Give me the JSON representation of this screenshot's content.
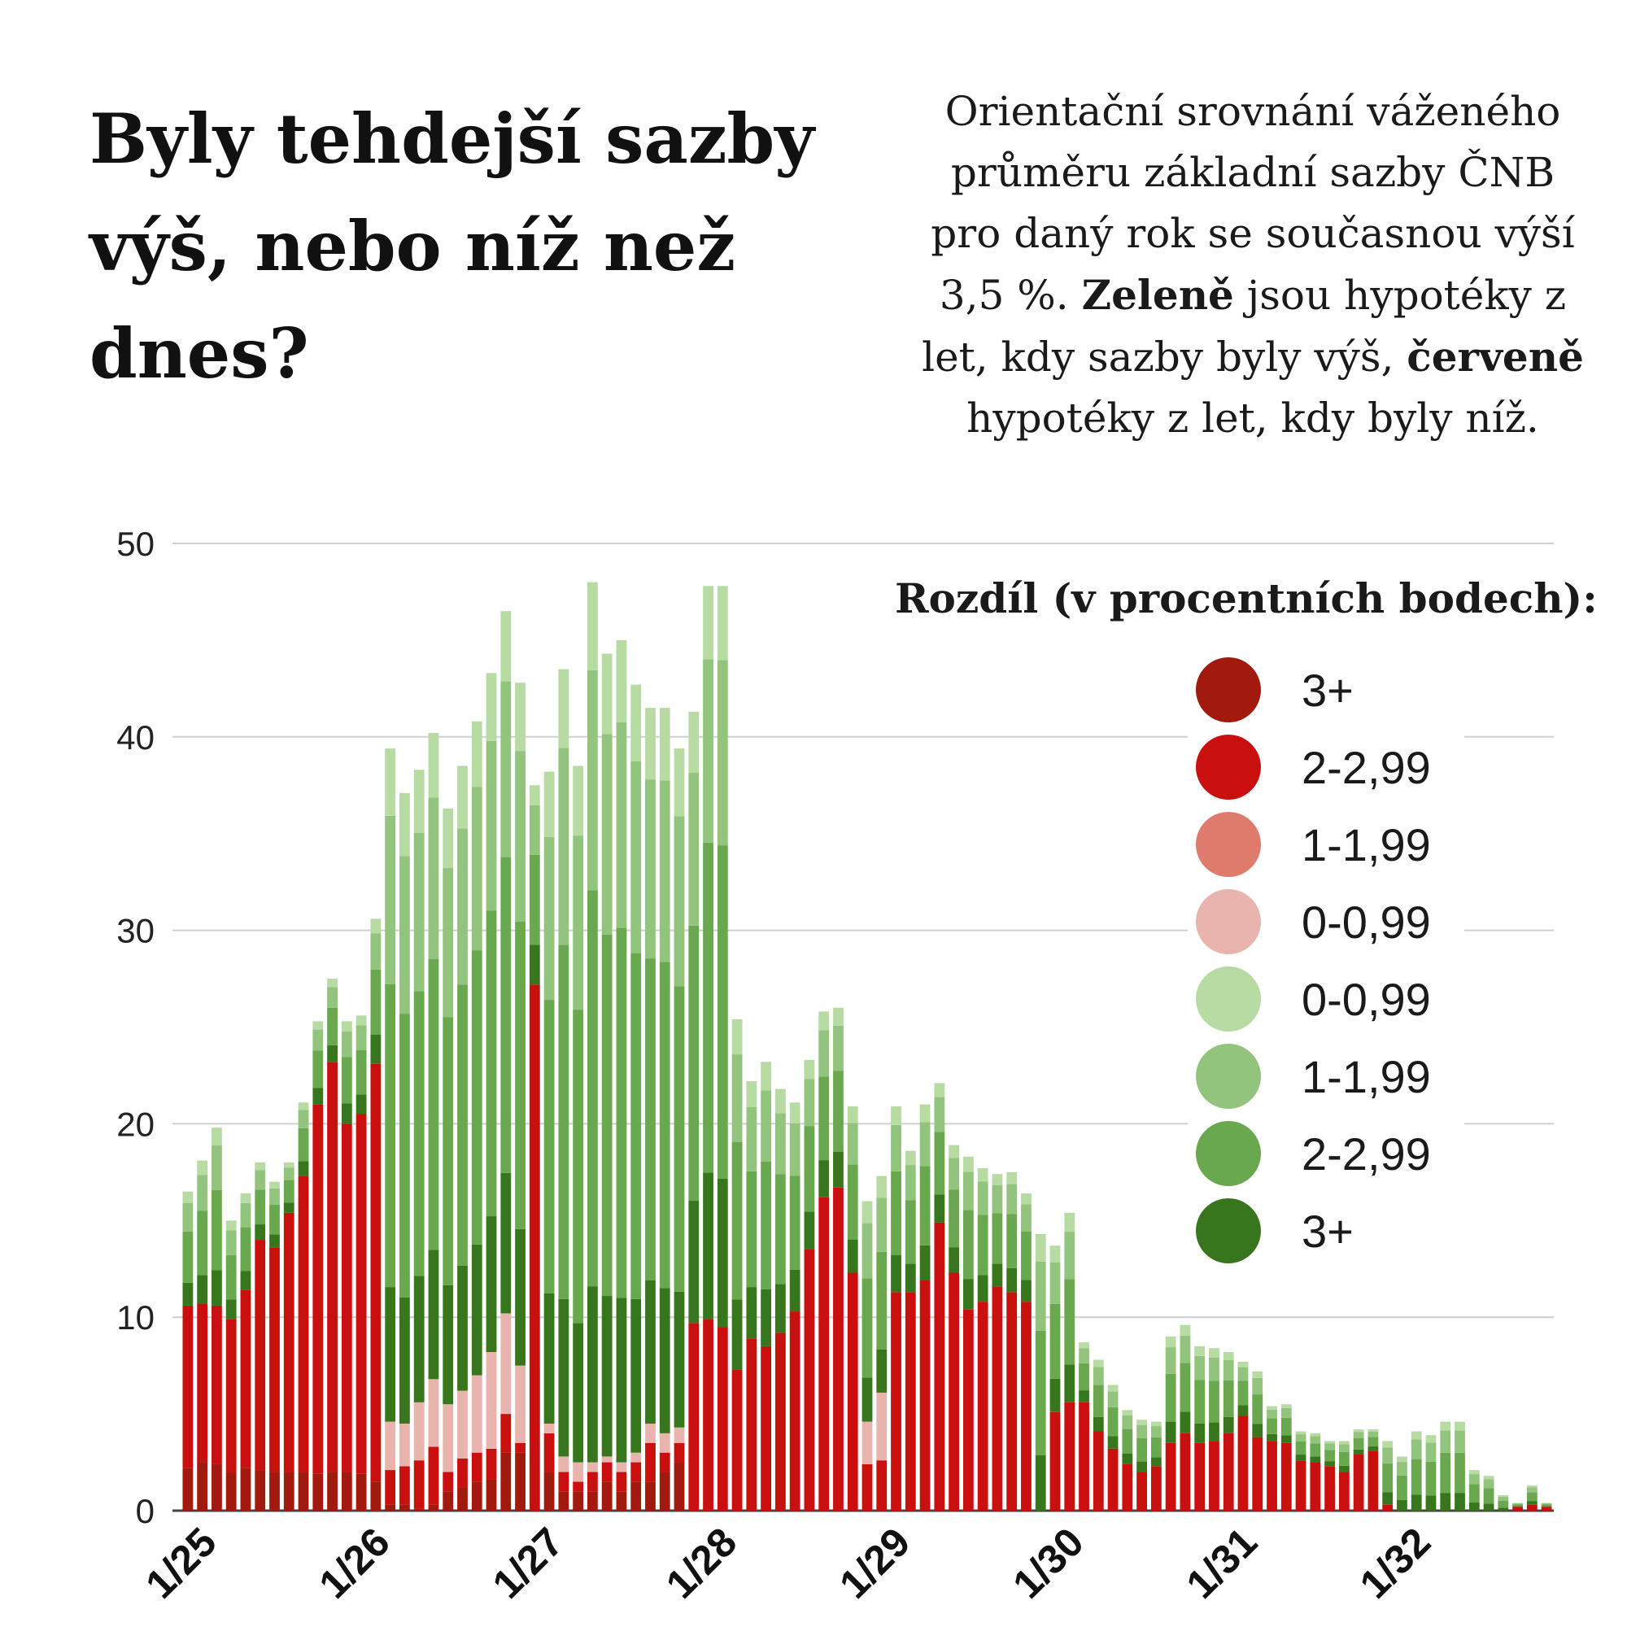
{
  "header": {
    "title": "Byly tehdejší sazby výš, nebo níž než dnes?",
    "subtitle_parts": [
      {
        "text": "Orientační srovnání váženého průměru základní sazby ČNB pro daný rok se současnou výší 3,5 %. ",
        "bold": false
      },
      {
        "text": "Zeleně",
        "bold": true
      },
      {
        "text": " jsou hypotéky z let, kdy sazby byly výš, ",
        "bold": false
      },
      {
        "text": "červeně",
        "bold": true
      },
      {
        "text": " hypotéky z let, kdy byly níž.",
        "bold": false
      }
    ]
  },
  "chart_data": {
    "type": "bar",
    "stacked": true,
    "ylim": [
      0,
      50
    ],
    "yticks": [
      0,
      10,
      20,
      30,
      40,
      50
    ],
    "x_tick_labels": [
      "1/25",
      "1/26",
      "1/27",
      "1/28",
      "1/29",
      "1/30",
      "1/31",
      "1/32"
    ],
    "x_tick_positions": [
      0,
      12,
      24,
      36,
      48,
      60,
      72,
      84
    ],
    "legend_title": "Rozdíl (v procentních bodech):",
    "legend_position": "right",
    "series": [
      {
        "name": "3+",
        "group": "lower",
        "color": "#a11a0d"
      },
      {
        "name": "2-2,99",
        "group": "lower",
        "color": "#c9100f"
      },
      {
        "name": "1-1,99",
        "group": "lower",
        "color": "#df7b6c"
      },
      {
        "name": "0-0,99",
        "group": "lower",
        "color": "#e9b4ae"
      },
      {
        "name": "0-0,99",
        "group": "higher",
        "color": "#b8dba4"
      },
      {
        "name": "1-1,99",
        "group": "higher",
        "color": "#93c47d"
      },
      {
        "name": "2-2,99",
        "group": "higher",
        "color": "#6aa84f"
      },
      {
        "name": "3+",
        "group": "higher",
        "color": "#38761d"
      }
    ],
    "bar_totals": [
      16.5,
      18.1,
      19.8,
      15.0,
      16.4,
      18.0,
      17.0,
      18.0,
      21.1,
      25.3,
      27.5,
      25.3,
      25.6,
      30.6,
      39.4,
      37.1,
      38.3,
      40.2,
      36.3,
      38.5,
      40.8,
      43.3,
      46.5,
      42.8,
      37.5,
      38.2,
      43.5,
      38.5,
      48.0,
      44.3,
      45.0,
      42.7,
      41.5,
      41.5,
      39.4,
      41.3,
      47.8,
      47.8,
      25.4,
      22.2,
      23.2,
      21.8,
      21.1,
      23.3,
      25.8,
      26.0,
      20.9,
      16.0,
      17.3,
      20.9,
      18.6,
      21.0,
      22.1,
      18.9,
      18.3,
      17.7,
      17.4,
      17.5,
      16.4,
      14.3,
      13.7,
      15.4,
      8.7,
      7.8,
      6.5,
      5.2,
      4.7,
      4.6,
      9.0,
      9.6,
      8.5,
      8.4,
      8.2,
      7.7,
      7.2,
      5.4,
      5.5,
      4.1,
      4.0,
      3.6,
      3.6,
      4.2,
      4.2,
      3.6,
      2.8,
      4.1,
      3.9,
      4.6,
      4.6,
      2.1,
      1.8,
      0.8,
      0.4,
      1.3,
      0.4
    ],
    "bar_lower": [
      [
        2.2,
        8.4,
        0,
        0
      ],
      [
        2.5,
        8.2,
        0,
        0
      ],
      [
        2.4,
        8.2,
        0,
        0
      ],
      [
        2.0,
        7.9,
        0,
        0
      ],
      [
        2.2,
        9.2,
        0,
        0
      ],
      [
        2.1,
        11.9,
        0,
        0
      ],
      [
        2.0,
        11.6,
        0,
        0
      ],
      [
        2.0,
        13.4,
        0,
        0
      ],
      [
        2.0,
        15.3,
        0,
        0
      ],
      [
        1.9,
        19.1,
        0,
        0
      ],
      [
        2.0,
        21.2,
        0,
        0
      ],
      [
        2.0,
        18.0,
        0,
        0
      ],
      [
        1.9,
        18.6,
        0,
        0
      ],
      [
        1.5,
        21.6,
        0,
        0
      ],
      [
        0.3,
        1.8,
        0,
        2.5
      ],
      [
        0.3,
        2.0,
        0,
        2.2
      ],
      [
        0.1,
        2.5,
        0,
        3.0
      ],
      [
        0.3,
        3.0,
        0,
        3.5
      ],
      [
        1.0,
        1.0,
        0,
        3.5
      ],
      [
        1.2,
        1.5,
        0,
        3.5
      ],
      [
        1.5,
        1.5,
        0,
        4.0
      ],
      [
        1.6,
        1.6,
        0,
        5.0
      ],
      [
        3.0,
        2.0,
        0,
        5.2
      ],
      [
        3.0,
        0.5,
        0,
        4.0
      ],
      [
        0,
        27.2,
        0,
        0
      ],
      [
        2.0,
        2.0,
        0,
        0.5
      ],
      [
        1.0,
        1.0,
        0,
        0.8
      ],
      [
        1.0,
        0.5,
        0,
        1.0
      ],
      [
        1.0,
        1.0,
        0,
        0.5
      ],
      [
        1.5,
        1.0,
        0,
        0.3
      ],
      [
        1.0,
        1.0,
        0,
        0.5
      ],
      [
        1.5,
        1.0,
        0,
        0.5
      ],
      [
        1.5,
        2.0,
        0,
        1.0
      ],
      [
        2.0,
        1.0,
        0,
        1.0
      ],
      [
        2.5,
        1.0,
        0,
        0.8
      ],
      [
        0,
        9.7,
        0,
        0
      ],
      [
        0,
        9.9,
        0,
        0
      ],
      [
        0,
        9.5,
        0,
        0
      ],
      [
        0,
        7.3,
        0,
        0
      ],
      [
        0,
        8.9,
        0,
        0
      ],
      [
        0,
        8.5,
        0,
        0
      ],
      [
        0,
        9.2,
        0,
        0
      ],
      [
        0,
        10.3,
        0,
        0
      ],
      [
        0,
        13.5,
        0,
        0
      ],
      [
        0,
        16.2,
        0,
        0
      ],
      [
        0,
        16.7,
        0,
        0
      ],
      [
        0,
        12.3,
        0,
        0
      ],
      [
        0,
        2.4,
        0,
        2.2
      ],
      [
        0,
        2.6,
        0,
        3.5
      ],
      [
        0,
        11.3,
        0,
        0
      ],
      [
        0,
        11.3,
        0,
        0
      ],
      [
        0,
        11.9,
        0,
        0
      ],
      [
        0,
        14.9,
        0,
        0
      ],
      [
        0,
        12.3,
        0,
        0
      ],
      [
        0,
        10.4,
        0,
        0
      ],
      [
        0,
        10.8,
        0,
        0
      ],
      [
        0,
        11.6,
        0,
        0
      ],
      [
        0,
        11.3,
        0,
        0
      ],
      [
        0,
        10.8,
        0,
        0
      ],
      [
        0,
        0,
        0,
        0
      ],
      [
        0,
        5.1,
        0,
        0
      ],
      [
        0,
        5.6,
        0,
        0
      ],
      [
        0,
        5.6,
        0,
        0
      ],
      [
        0,
        4.1,
        0,
        0
      ],
      [
        0,
        3.2,
        0,
        0
      ],
      [
        0,
        2.4,
        0,
        0
      ],
      [
        0,
        2.0,
        0,
        0
      ],
      [
        0,
        2.3,
        0,
        0
      ],
      [
        0,
        3.5,
        0,
        0
      ],
      [
        0,
        4.0,
        0,
        0
      ],
      [
        0,
        3.5,
        0,
        0
      ],
      [
        0,
        3.6,
        0,
        0
      ],
      [
        0,
        4.0,
        0,
        0
      ],
      [
        0,
        4.9,
        0,
        0
      ],
      [
        0,
        3.8,
        0,
        0
      ],
      [
        0,
        3.6,
        0,
        0
      ],
      [
        0,
        3.5,
        0,
        0
      ],
      [
        0,
        2.6,
        0,
        0
      ],
      [
        0,
        2.5,
        0,
        0
      ],
      [
        0,
        2.3,
        0,
        0
      ],
      [
        0,
        2.0,
        0,
        0
      ],
      [
        0,
        2.9,
        0,
        0
      ],
      [
        0,
        3.1,
        0,
        0
      ],
      [
        0,
        0.3,
        0,
        0
      ],
      [
        0,
        0,
        0,
        0
      ],
      [
        0,
        0,
        0,
        0
      ],
      [
        0,
        0,
        0,
        0
      ],
      [
        0,
        0,
        0,
        0
      ],
      [
        0,
        0,
        0,
        0
      ],
      [
        0,
        0,
        0,
        0
      ],
      [
        0,
        0,
        0,
        0
      ],
      [
        0,
        0,
        0,
        0
      ],
      [
        0,
        0.2,
        0,
        0
      ],
      [
        0,
        0.3,
        0,
        0
      ],
      [
        0,
        0.2,
        0,
        0
      ]
    ]
  }
}
